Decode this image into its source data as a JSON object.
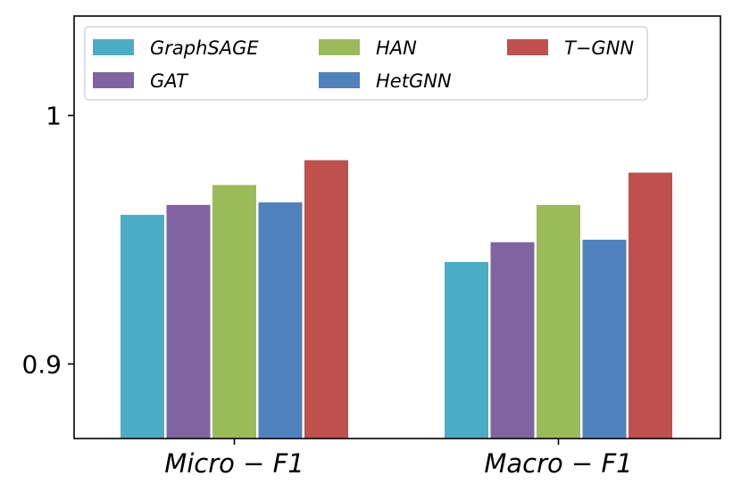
{
  "chart_data": {
    "type": "bar",
    "title": "",
    "xlabel": "",
    "ylabel": "",
    "ylim": [
      0.87,
      1.04
    ],
    "yticks": [
      {
        "value": 0.9,
        "label": "0.9"
      },
      {
        "value": 1.0,
        "label": "1"
      }
    ],
    "categories": [
      "Micro − F1",
      "Macro − F1"
    ],
    "series": [
      {
        "name": "GraphSAGE",
        "color": "#4bacc6",
        "values": [
          0.96,
          0.941
        ]
      },
      {
        "name": "GAT",
        "color": "#8064a2",
        "values": [
          0.964,
          0.949
        ]
      },
      {
        "name": "HAN",
        "color": "#9bbb59",
        "values": [
          0.972,
          0.964
        ]
      },
      {
        "name": "HetGNN",
        "color": "#4f81bd",
        "values": [
          0.965,
          0.95
        ]
      },
      {
        "name": "T−GNN",
        "color": "#c0504d",
        "values": [
          0.982,
          0.977
        ]
      }
    ],
    "legend_position": "top"
  }
}
